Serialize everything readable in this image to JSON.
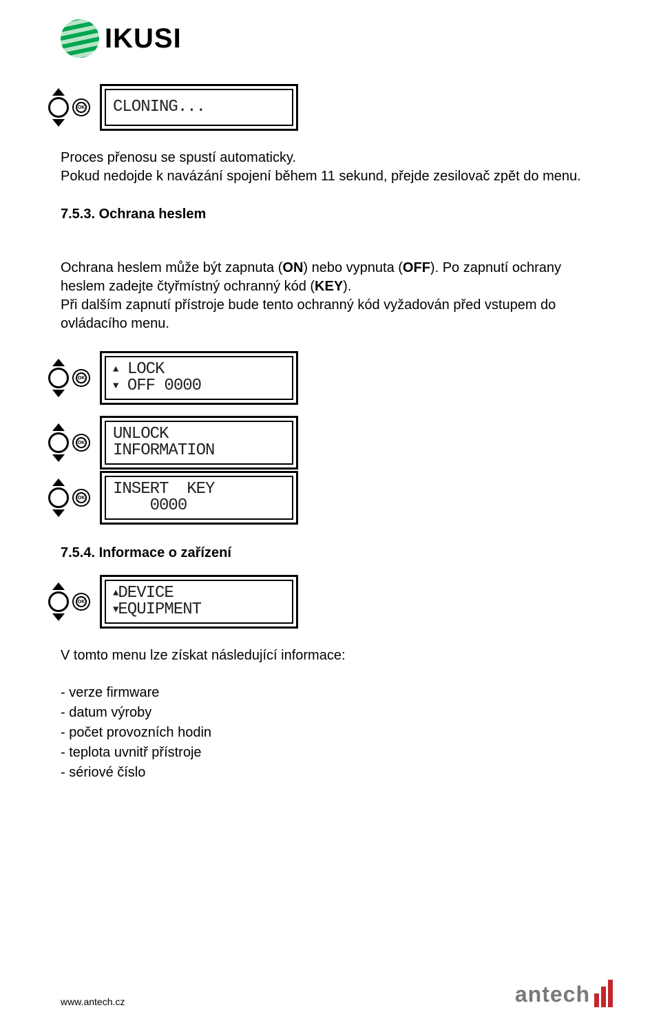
{
  "logo": {
    "brand": "IKUSI"
  },
  "lcd1": {
    "line1": "CLONING..."
  },
  "p1": "Proces přenosu se spustí automaticky.\nPokud nedojde k navázání spojení během 11 sekund, přejde zesilovač zpět do menu.",
  "h753": {
    "num": "7.5.3.",
    "title": "Ochrana heslem"
  },
  "p2a": "Ochrana heslem může být zapnuta (",
  "p2on": "ON",
  "p2b": ") nebo vypnuta (",
  "p2off": "OFF",
  "p2c": "). Po zapnutí ochrany heslem zadejte čtyřmístný ochranný kód (",
  "p2key": "KEY",
  "p2d": ").\nPři dalším zapnutí přístroje bude tento ochranný kód vyžadován před vstupem do ovládacího menu.",
  "lcd2": {
    "line1": "LOCK",
    "line2": "OFF 0000"
  },
  "lcd3": {
    "line1": "UNLOCK",
    "line2": "INFORMATION"
  },
  "lcd4": {
    "line1": "INSERT  KEY",
    "line2": "    0000"
  },
  "h754": {
    "num": "7.5.4.",
    "title": "Informace o zařízení"
  },
  "lcd5": {
    "line1": "DEVICE",
    "line2": "EQUIPMENT"
  },
  "p3": "V tomto menu lze získat následující informace:",
  "b1": "- verze firmware",
  "b2": "- datum výroby",
  "b3": "- počet provozních hodin",
  "b4": "- teplota uvnitř přístroje",
  "b5": "- sériové číslo",
  "footer_url": "www.antech.cz",
  "antech_brand": "antech"
}
